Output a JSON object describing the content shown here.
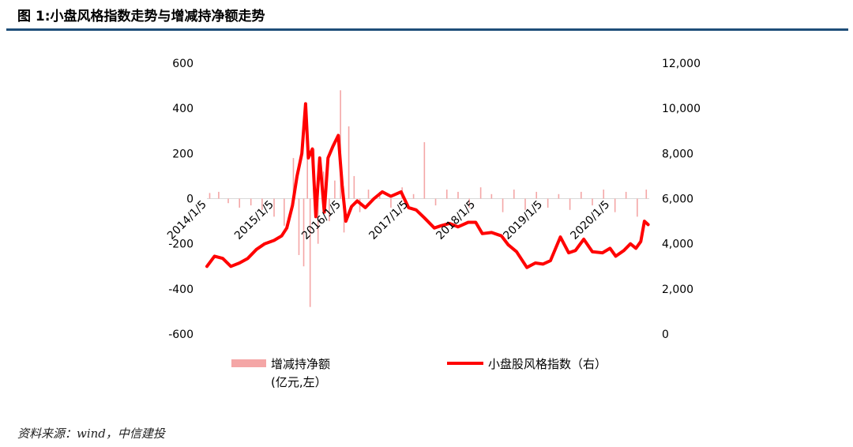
{
  "figure": {
    "title": "图 1:小盘风格指数走势与增减持净额走势",
    "source": "资料来源：wind，中信建投"
  },
  "chart_data": {
    "type": "bar+line",
    "x_ticks": [
      "2014/1/5",
      "2015/1/5",
      "2016/1/5",
      "2017/1/5",
      "2018/1/5",
      "2019/1/5",
      "2020/1/5"
    ],
    "y_left": {
      "range": [
        -600,
        600
      ],
      "ticks": [
        "600",
        "400",
        "200",
        "0",
        "-200",
        "-400",
        "-600"
      ]
    },
    "y_right": {
      "range": [
        0,
        12000
      ],
      "ticks": [
        "12,000",
        "10,000",
        "8,000",
        "6,000",
        "4,000",
        "2,000",
        "0"
      ]
    },
    "legend": [
      {
        "label": "增减持净额",
        "label2": "(亿元,左）",
        "type": "bar",
        "color": "#f4a6a6"
      },
      {
        "label": "小盘股风格指数（右）",
        "type": "line",
        "color": "#ff0000"
      }
    ],
    "series": [
      {
        "name": "小盘股风格指数（右）",
        "axis": "right",
        "x": [
          "2014-01-05",
          "2014-02-15",
          "2014-04-01",
          "2014-05-15",
          "2014-07-01",
          "2014-08-15",
          "2014-10-01",
          "2014-11-15",
          "2015-01-05",
          "2015-02-15",
          "2015-03-15",
          "2015-04-15",
          "2015-05-10",
          "2015-06-05",
          "2015-06-25",
          "2015-07-10",
          "2015-08-01",
          "2015-08-20",
          "2015-09-10",
          "2015-10-05",
          "2015-10-25",
          "2015-11-20",
          "2015-12-20",
          "2016-01-10",
          "2016-01-30",
          "2016-03-01",
          "2016-04-01",
          "2016-05-15",
          "2016-07-01",
          "2016-08-15",
          "2016-10-01",
          "2016-11-25",
          "2017-01-05",
          "2017-02-15",
          "2017-04-01",
          "2017-05-25",
          "2017-07-01",
          "2017-08-15",
          "2017-10-01",
          "2017-11-25",
          "2018-01-05",
          "2018-02-10",
          "2018-04-01",
          "2018-05-25",
          "2018-07-01",
          "2018-08-15",
          "2018-10-10",
          "2018-11-25",
          "2019-01-05",
          "2019-02-15",
          "2019-04-10",
          "2019-05-25",
          "2019-07-01",
          "2019-08-15",
          "2019-10-01",
          "2019-11-25",
          "2020-01-05",
          "2020-02-05",
          "2020-03-20",
          "2020-04-25",
          "2020-05-25",
          "2020-06-20",
          "2020-07-10",
          "2020-07-30"
        ],
        "values": [
          3000,
          3450,
          3350,
          3000,
          3150,
          3350,
          3750,
          4000,
          4150,
          4350,
          4700,
          5700,
          7000,
          8000,
          10200,
          7800,
          8200,
          5200,
          7800,
          5400,
          7800,
          8300,
          8800,
          6600,
          5000,
          5650,
          5900,
          5600,
          6000,
          6300,
          6100,
          6300,
          5600,
          5500,
          5150,
          4700,
          4800,
          4900,
          4750,
          4950,
          4950,
          4450,
          4500,
          4350,
          3950,
          3650,
          2950,
          3150,
          3100,
          3250,
          4300,
          3600,
          3700,
          4200,
          3650,
          3600,
          3800,
          3450,
          3700,
          4000,
          3800,
          4100,
          5000,
          4850
        ]
      },
      {
        "name": "增减持净额",
        "axis": "left",
        "x": [
          "2014-01-20",
          "2014-03-10",
          "2014-05-01",
          "2014-07-01",
          "2014-09-01",
          "2014-11-01",
          "2015-01-05",
          "2015-03-01",
          "2015-04-20",
          "2015-05-20",
          "2015-06-15",
          "2015-07-05",
          "2015-07-20",
          "2015-08-10",
          "2015-09-01",
          "2015-10-01",
          "2015-11-01",
          "2015-12-01",
          "2016-01-01",
          "2016-01-20",
          "2016-02-15",
          "2016-03-15",
          "2016-04-15",
          "2016-06-01",
          "2016-08-01",
          "2016-10-01",
          "2016-12-01",
          "2017-02-01",
          "2017-04-01",
          "2017-06-01",
          "2017-08-01",
          "2017-10-01",
          "2017-12-01",
          "2018-02-01",
          "2018-04-01",
          "2018-06-01",
          "2018-08-01",
          "2018-10-01",
          "2018-12-01",
          "2019-02-01",
          "2019-04-01",
          "2019-06-01",
          "2019-08-01",
          "2019-10-01",
          "2019-12-01",
          "2020-02-01",
          "2020-04-01",
          "2020-06-01",
          "2020-07-20"
        ],
        "values": [
          25,
          30,
          -20,
          -40,
          -30,
          -50,
          -80,
          -120,
          180,
          -250,
          -300,
          330,
          -480,
          220,
          -200,
          120,
          -100,
          80,
          480,
          -150,
          320,
          100,
          -60,
          40,
          30,
          -40,
          50,
          20,
          250,
          -30,
          40,
          30,
          -40,
          50,
          20,
          -60,
          40,
          -50,
          30,
          -40,
          20,
          -50,
          30,
          -30,
          40,
          -60,
          30,
          -80,
          40
        ]
      }
    ],
    "grid": "horizontal"
  }
}
